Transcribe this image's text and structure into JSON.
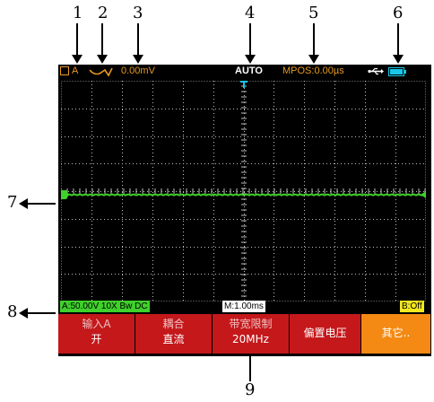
{
  "callouts": [
    "1",
    "2",
    "3",
    "4",
    "5",
    "6",
    "7",
    "8",
    "9"
  ],
  "status": {
    "trigger_source": "A",
    "trigger_level": "0.00mV",
    "mode": "AUTO",
    "mpos": "MPOS:0.00µs"
  },
  "info": {
    "channel_a": "A:50.00V 10X Bw DC",
    "timebase": "M:1.00ms",
    "channel_b": "B:Off"
  },
  "menu": [
    {
      "line1": "输入A",
      "line2": "开"
    },
    {
      "line1": "耦合",
      "line2": "直流"
    },
    {
      "line1": "带宽限制",
      "line2": "20MHz"
    },
    {
      "line1": "偏置电压",
      "line2": ""
    },
    {
      "line1": "其它..",
      "line2": ""
    }
  ],
  "colors": {
    "trace": "#3fd12b",
    "menu": "#c4181b",
    "menu_active": "#f48a13",
    "status": "#e89a1e"
  }
}
